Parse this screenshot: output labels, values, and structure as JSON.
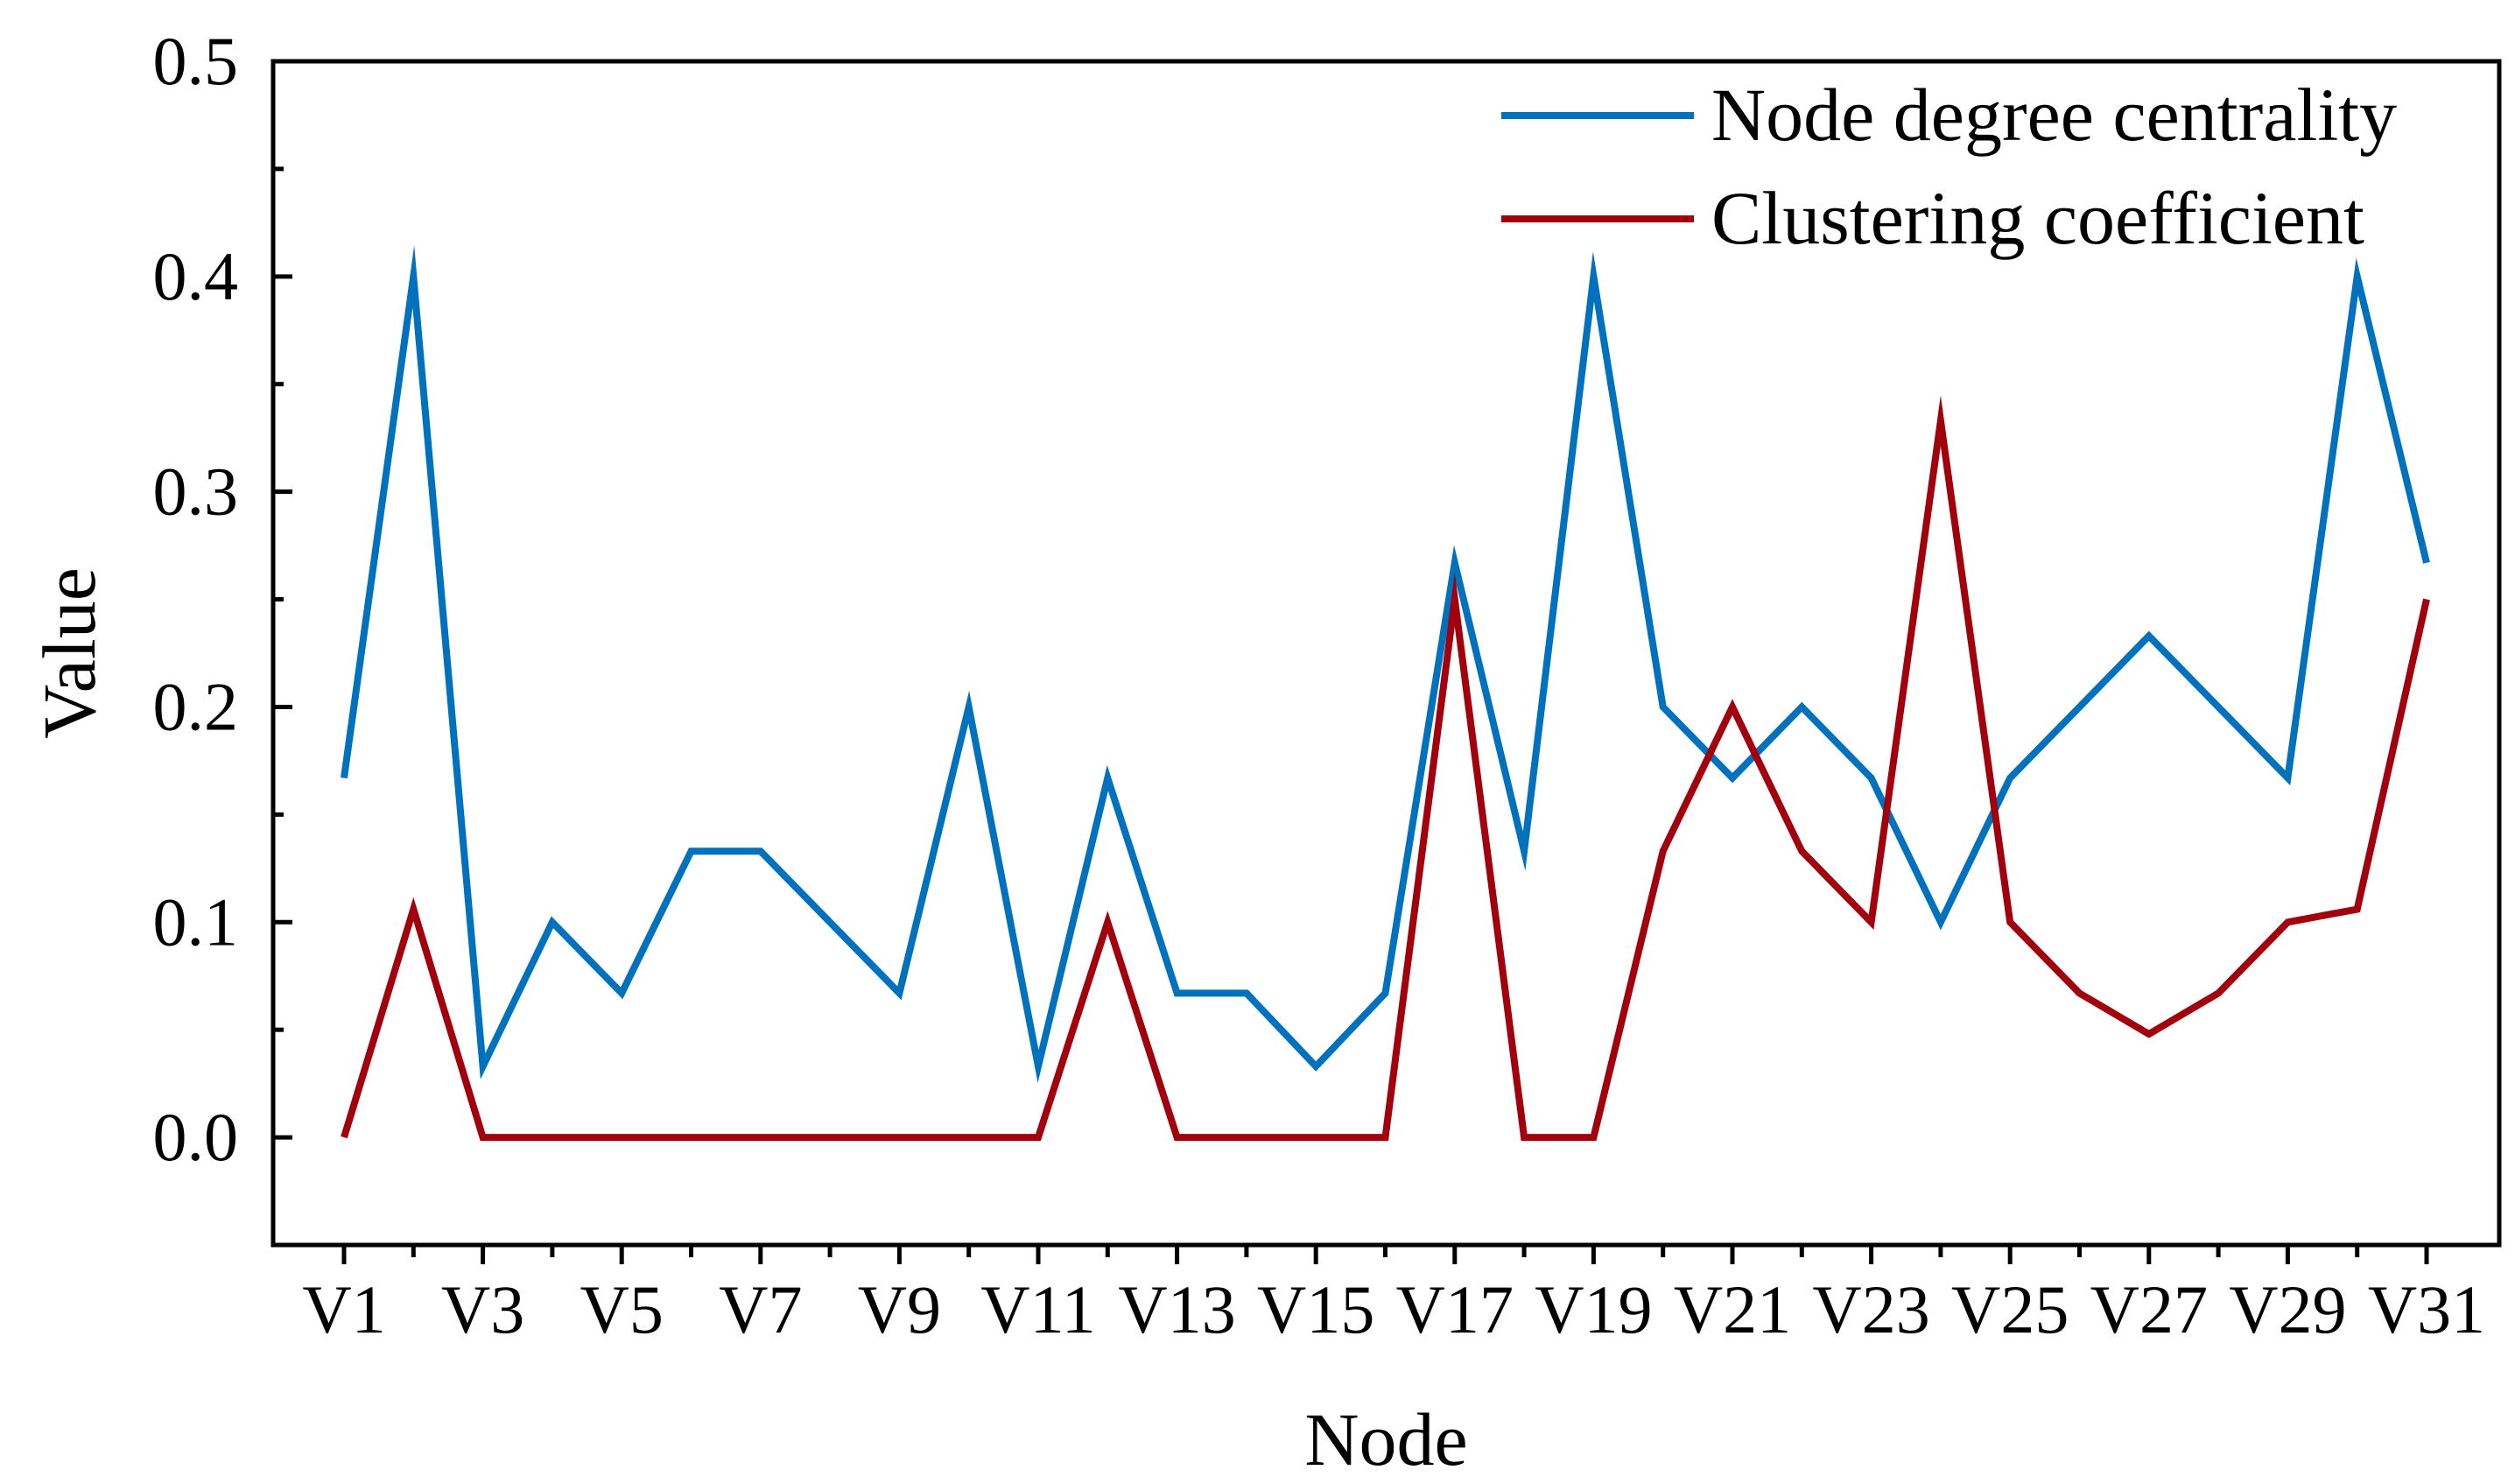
{
  "chart_data": {
    "type": "line",
    "title": "",
    "xlabel": "Node",
    "ylabel": "Value",
    "ylim": [
      -0.05,
      0.5
    ],
    "y_ticks": [
      "0.0",
      "0.1",
      "0.2",
      "0.3",
      "0.4",
      "0.5"
    ],
    "y_tick_values": [
      0.0,
      0.1,
      0.2,
      0.3,
      0.4,
      0.5
    ],
    "categories": [
      "V1",
      "V2",
      "V3",
      "V4",
      "V5",
      "V6",
      "V7",
      "V8",
      "V9",
      "V10",
      "V11",
      "V12",
      "V13",
      "V14",
      "V15",
      "V16",
      "V17",
      "V18",
      "V19",
      "V20",
      "V21",
      "V22",
      "V23",
      "V24",
      "V25",
      "V26",
      "V27",
      "V28",
      "V29",
      "V30",
      "V31"
    ],
    "x_tick_labels": [
      "V1",
      "V3",
      "V5",
      "V7",
      "V9",
      "V11",
      "V13",
      "V15",
      "V17",
      "V19",
      "V21",
      "V23",
      "V25",
      "V27",
      "V29",
      "V31"
    ],
    "legend_position": "top-right",
    "grid": false,
    "series": [
      {
        "name": "Node degree centrality",
        "color": "#0072BD",
        "values": [
          0.167,
          0.4,
          0.033,
          0.1,
          0.067,
          0.133,
          0.133,
          0.1,
          0.067,
          0.2,
          0.033,
          0.167,
          0.067,
          0.067,
          0.033,
          0.067,
          0.267,
          0.133,
          0.4,
          0.2,
          0.167,
          0.2,
          0.167,
          0.1,
          0.167,
          0.2,
          0.233,
          0.2,
          0.167,
          0.4,
          0.267
        ]
      },
      {
        "name": "Clustering coefficient",
        "color": "#A2000C",
        "values": [
          0.0,
          0.106,
          0.0,
          0.0,
          0.0,
          0.0,
          0.0,
          0.0,
          0.0,
          0.0,
          0.0,
          0.1,
          0.0,
          0.0,
          0.0,
          0.0,
          0.25,
          0.0,
          0.0,
          0.133,
          0.2,
          0.133,
          0.1,
          0.333,
          0.1,
          0.067,
          0.048,
          0.067,
          0.1,
          0.106,
          0.25
        ]
      }
    ]
  }
}
